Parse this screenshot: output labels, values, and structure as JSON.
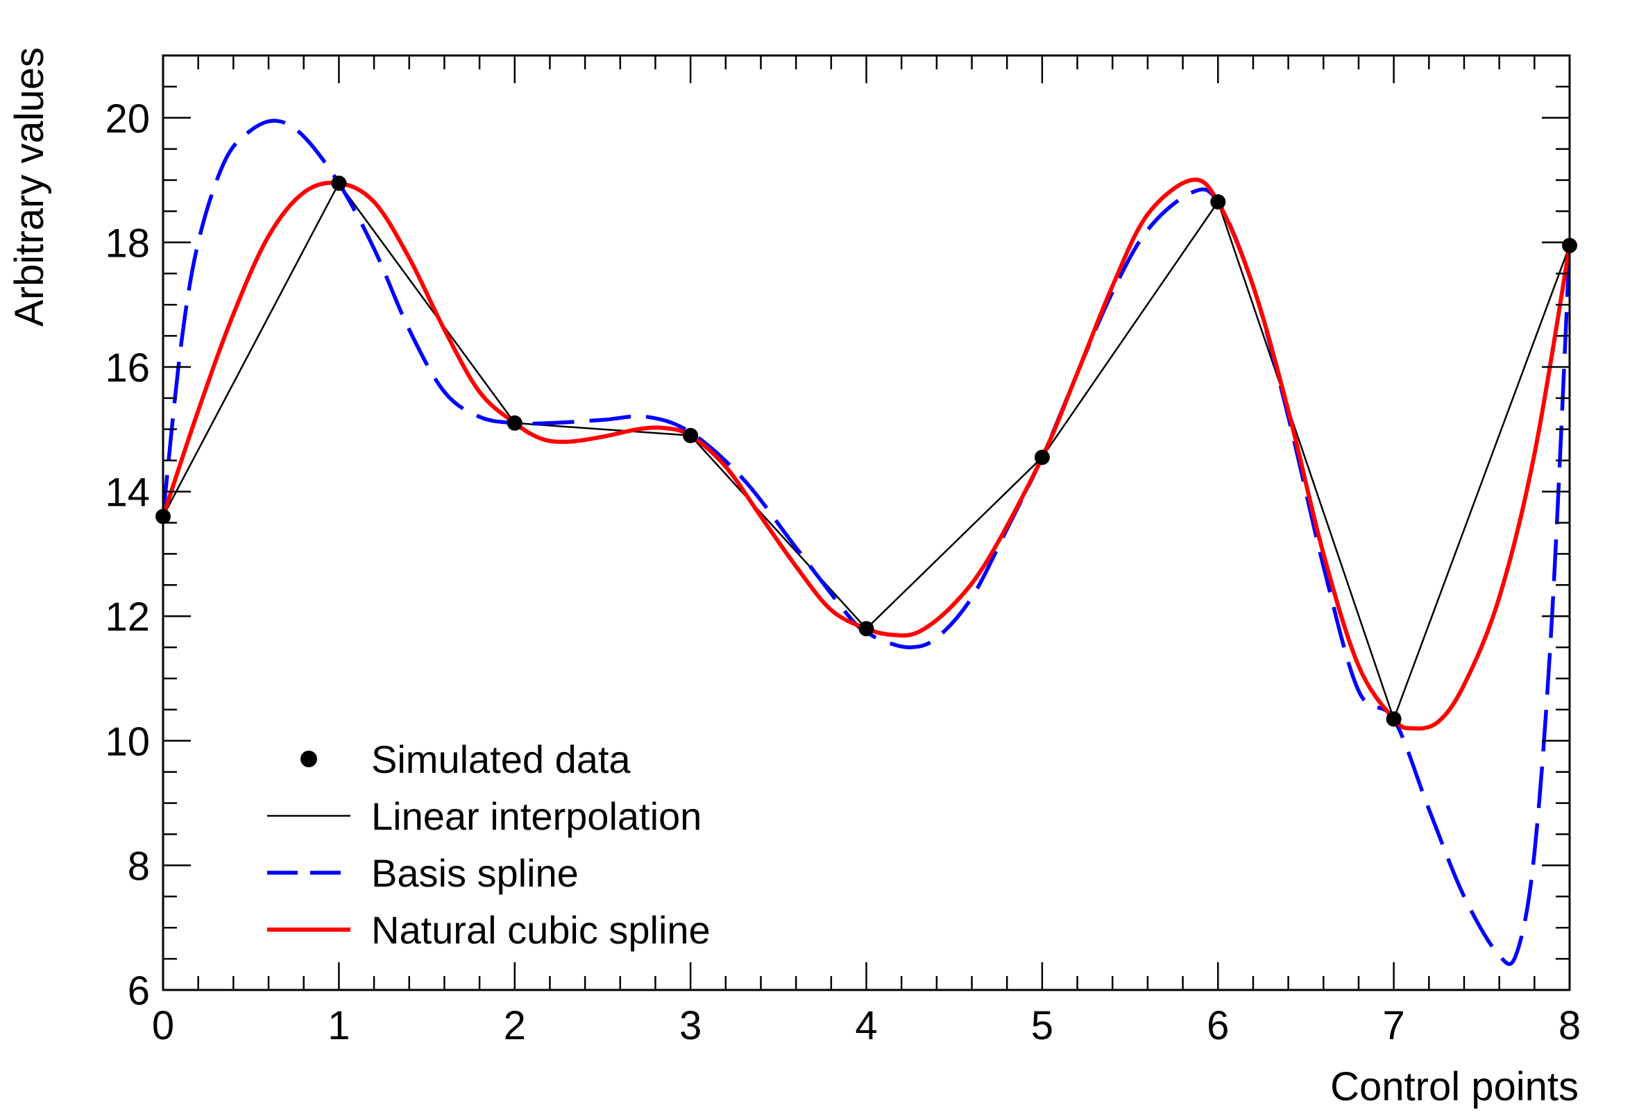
{
  "chart_data": {
    "type": "line",
    "title": "",
    "xlabel": "Control points",
    "ylabel": "Arbitrary values",
    "xlim": [
      0,
      8
    ],
    "ylim": [
      6,
      21
    ],
    "x_ticks": [
      0,
      1,
      2,
      3,
      4,
      5,
      6,
      7,
      8
    ],
    "y_ticks": [
      6,
      8,
      10,
      12,
      14,
      16,
      18,
      20
    ],
    "x_tick_labels": [
      "0",
      "1",
      "2",
      "3",
      "4",
      "5",
      "6",
      "7",
      "8"
    ],
    "y_tick_labels": [
      "6",
      "8",
      "10",
      "12",
      "14",
      "16",
      "18",
      "20"
    ],
    "grid": false,
    "legend_position": "bottom-left",
    "series": [
      {
        "name": "Simulated data",
        "style": "markers",
        "color": "#000000",
        "x": [
          0,
          1,
          2,
          3,
          4,
          5,
          6,
          7,
          8
        ],
        "y": [
          13.6,
          18.95,
          15.1,
          14.9,
          11.8,
          14.55,
          18.65,
          10.35,
          17.95
        ]
      },
      {
        "name": "Linear interpolation",
        "style": "solid-thin",
        "color": "#000000",
        "x": [
          0,
          1,
          2,
          3,
          4,
          5,
          6,
          7,
          8
        ],
        "y": [
          13.6,
          18.95,
          15.1,
          14.9,
          11.8,
          14.55,
          18.65,
          10.35,
          17.95
        ]
      },
      {
        "name": "Basis spline",
        "style": "dashed",
        "color": "#0000ff",
        "x": [
          0,
          0.1,
          0.2,
          0.35,
          0.5,
          0.65,
          0.8,
          1.0,
          1.2,
          1.4,
          1.6,
          1.8,
          2.0,
          2.2,
          2.5,
          2.75,
          3.0,
          3.3,
          3.6,
          3.9,
          4.0,
          4.1,
          4.25,
          4.4,
          4.6,
          4.8,
          5.0,
          5.2,
          5.4,
          5.6,
          5.85,
          6.0,
          6.2,
          6.4,
          6.6,
          6.8,
          7.0,
          7.2,
          7.4,
          7.6,
          7.7,
          7.8,
          7.9,
          8.0
        ],
        "y": [
          13.6,
          16.3,
          18.0,
          19.3,
          19.8,
          19.95,
          19.7,
          18.95,
          17.9,
          16.6,
          15.6,
          15.2,
          15.1,
          15.1,
          15.15,
          15.2,
          14.95,
          14.2,
          13.1,
          12.0,
          11.75,
          11.6,
          11.5,
          11.65,
          12.3,
          13.4,
          14.55,
          15.9,
          17.2,
          18.2,
          18.8,
          18.65,
          17.3,
          15.2,
          12.8,
          10.8,
          10.35,
          8.9,
          7.5,
          6.55,
          6.6,
          8.2,
          12.0,
          17.95
        ]
      },
      {
        "name": "Natural cubic spline",
        "style": "solid",
        "color": "#ff0000",
        "x": [
          0,
          0.2,
          0.4,
          0.6,
          0.8,
          1.0,
          1.2,
          1.4,
          1.6,
          1.8,
          2.0,
          2.15,
          2.3,
          2.5,
          2.7,
          2.85,
          3.0,
          3.2,
          3.4,
          3.6,
          3.8,
          4.0,
          4.15,
          4.3,
          4.5,
          4.7,
          5.0,
          5.2,
          5.4,
          5.6,
          5.85,
          6.0,
          6.2,
          6.4,
          6.6,
          6.8,
          7.0,
          7.1,
          7.25,
          7.4,
          7.6,
          7.8,
          8.0
        ],
        "y": [
          13.6,
          15.3,
          16.85,
          18.1,
          18.8,
          18.95,
          18.65,
          17.75,
          16.6,
          15.6,
          15.1,
          14.85,
          14.8,
          14.88,
          15.0,
          15.02,
          14.9,
          14.4,
          13.6,
          12.8,
          12.1,
          11.8,
          11.7,
          11.75,
          12.2,
          12.95,
          14.55,
          15.9,
          17.3,
          18.45,
          19.0,
          18.65,
          17.3,
          15.3,
          13.0,
          11.2,
          10.35,
          10.2,
          10.3,
          10.9,
          12.3,
          14.6,
          17.95
        ]
      }
    ]
  }
}
